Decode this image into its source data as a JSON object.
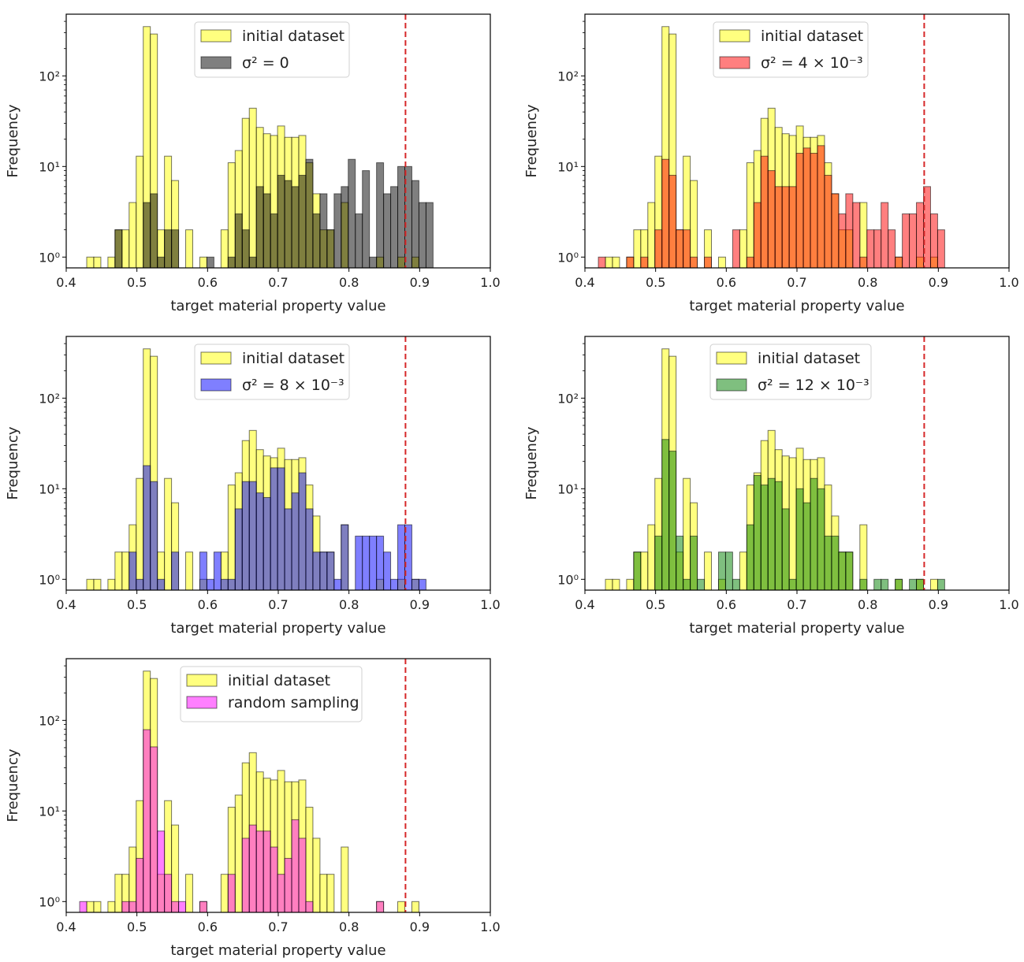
{
  "chart_data": [
    {
      "type": "bar",
      "subtype": "overlaid histogram",
      "xlabel": "target material property value",
      "ylabel": "Frequency",
      "xlim": [
        0.4,
        1.0
      ],
      "ylim": [
        0.76,
        480
      ],
      "yscale": "log",
      "xticks": [
        "0.4",
        "0.5",
        "0.6",
        "0.7",
        "0.8",
        "0.9",
        "1.0"
      ],
      "yticks": [
        1,
        10,
        100
      ],
      "ytick_labels": [
        "10⁰",
        "10¹",
        "10²"
      ],
      "bin_start": 0.419,
      "bin_width": 0.01,
      "threshold_line": {
        "x": 0.88,
        "color": "#d62728",
        "style": "dashed"
      },
      "legend_position": "top-center",
      "series": [
        {
          "name": "initial dataset",
          "color": "#ffff00",
          "counts": [
            0,
            1,
            1,
            0,
            1,
            2,
            2,
            4,
            13,
            350,
            290,
            2,
            13,
            7,
            0,
            2,
            0,
            1,
            0,
            0,
            2,
            11,
            15,
            34,
            44,
            27,
            23,
            22,
            28,
            21,
            21,
            22,
            11,
            5,
            2,
            2,
            0,
            4,
            0,
            0,
            0,
            0,
            1,
            0,
            0,
            1,
            0,
            1,
            0,
            0
          ]
        },
        {
          "name": "σ² = 0",
          "color": "#000000",
          "counts": [
            0,
            0,
            0,
            0,
            0,
            2,
            0,
            0,
            0,
            4,
            5,
            1,
            2,
            2,
            0,
            0,
            0,
            0,
            1,
            0,
            0,
            1,
            3,
            2,
            1,
            6,
            5,
            3,
            8,
            7,
            6,
            8,
            12,
            3,
            5,
            2,
            5,
            6,
            12,
            3,
            9,
            1,
            11,
            5,
            6,
            10,
            10,
            7,
            4,
            4
          ]
        }
      ]
    },
    {
      "type": "bar",
      "subtype": "overlaid histogram",
      "xlabel": "target material property value",
      "ylabel": "Frequency",
      "xlim": [
        0.4,
        1.0
      ],
      "ylim": [
        0.76,
        480
      ],
      "yscale": "log",
      "xticks": [
        "0.4",
        "0.5",
        "0.6",
        "0.7",
        "0.8",
        "0.9",
        "1.0"
      ],
      "yticks": [
        1,
        10,
        100
      ],
      "ytick_labels": [
        "10⁰",
        "10¹",
        "10²"
      ],
      "bin_start": 0.419,
      "bin_width": 0.01,
      "threshold_line": {
        "x": 0.88,
        "color": "#d62728",
        "style": "dashed"
      },
      "legend_position": "top-center",
      "series": [
        {
          "name": "initial dataset",
          "color": "#ffff00",
          "counts": [
            0,
            1,
            1,
            0,
            1,
            2,
            2,
            4,
            13,
            350,
            290,
            2,
            13,
            7,
            0,
            2,
            0,
            1,
            0,
            0,
            2,
            11,
            15,
            34,
            44,
            27,
            23,
            22,
            28,
            21,
            21,
            22,
            11,
            5,
            2,
            2,
            0,
            4,
            0,
            0,
            0,
            0,
            1,
            0,
            0,
            1,
            0,
            1,
            0,
            0
          ]
        },
        {
          "name": "σ² = 4 × 10⁻³",
          "color": "#ff0000",
          "counts": [
            1,
            0,
            0,
            0,
            1,
            0,
            1,
            0,
            2,
            12,
            8,
            2,
            2,
            1,
            0,
            1,
            0,
            0,
            0,
            2,
            0,
            1,
            4,
            13,
            9,
            6,
            6,
            6,
            14,
            16,
            14,
            17,
            8,
            5,
            3,
            5,
            4,
            1,
            2,
            2,
            4,
            2,
            1,
            3,
            3,
            4,
            6,
            3,
            2,
            0
          ]
        }
      ]
    },
    {
      "type": "bar",
      "subtype": "overlaid histogram",
      "xlabel": "target material property value",
      "ylabel": "Frequency",
      "xlim": [
        0.4,
        1.0
      ],
      "ylim": [
        0.76,
        480
      ],
      "yscale": "log",
      "xticks": [
        "0.4",
        "0.5",
        "0.6",
        "0.7",
        "0.8",
        "0.9",
        "1.0"
      ],
      "yticks": [
        1,
        10,
        100
      ],
      "ytick_labels": [
        "10⁰",
        "10¹",
        "10²"
      ],
      "bin_start": 0.419,
      "bin_width": 0.01,
      "threshold_line": {
        "x": 0.88,
        "color": "#d62728",
        "style": "dashed"
      },
      "legend_position": "top-center",
      "series": [
        {
          "name": "initial dataset",
          "color": "#ffff00",
          "counts": [
            0,
            1,
            1,
            0,
            1,
            2,
            2,
            4,
            13,
            350,
            290,
            2,
            13,
            7,
            0,
            2,
            0,
            1,
            0,
            0,
            2,
            11,
            15,
            34,
            44,
            27,
            23,
            22,
            28,
            21,
            21,
            22,
            11,
            5,
            2,
            2,
            0,
            4,
            0,
            0,
            0,
            0,
            1,
            0,
            0,
            1,
            0,
            1,
            0,
            0
          ]
        },
        {
          "name": "σ² = 8 × 10⁻³",
          "color": "#0000ff",
          "counts": [
            0,
            0,
            0,
            0,
            0,
            0,
            0,
            2,
            1,
            18,
            12,
            1,
            0,
            2,
            0,
            0,
            0,
            2,
            1,
            2,
            1,
            1,
            6,
            12,
            12,
            9,
            8,
            17,
            17,
            6,
            9,
            15,
            6,
            2,
            2,
            2,
            1,
            4,
            0,
            3,
            3,
            3,
            3,
            2,
            1,
            4,
            4,
            1,
            1,
            0
          ]
        }
      ]
    },
    {
      "type": "bar",
      "subtype": "overlaid histogram",
      "xlabel": "target material property value",
      "ylabel": "Frequency",
      "xlim": [
        0.4,
        1.0
      ],
      "ylim": [
        0.76,
        480
      ],
      "yscale": "log",
      "xticks": [
        "0.4",
        "0.5",
        "0.6",
        "0.7",
        "0.8",
        "0.9",
        "1.0"
      ],
      "yticks": [
        1,
        10,
        100
      ],
      "ytick_labels": [
        "10⁰",
        "10¹",
        "10²"
      ],
      "bin_start": 0.419,
      "bin_width": 0.01,
      "threshold_line": {
        "x": 0.88,
        "color": "#d62728",
        "style": "dashed"
      },
      "legend_position": "top-center",
      "series": [
        {
          "name": "initial dataset",
          "color": "#ffff00",
          "counts": [
            0,
            1,
            1,
            0,
            1,
            2,
            2,
            4,
            13,
            350,
            290,
            2,
            13,
            7,
            0,
            2,
            0,
            1,
            0,
            0,
            2,
            11,
            15,
            34,
            44,
            27,
            23,
            22,
            28,
            21,
            21,
            22,
            11,
            5,
            2,
            2,
            0,
            4,
            0,
            0,
            0,
            0,
            1,
            0,
            0,
            1,
            0,
            1,
            0,
            0
          ]
        },
        {
          "name": "σ² = 12 × 10⁻³",
          "color": "#008000",
          "counts": [
            0,
            0,
            0,
            0,
            0,
            2,
            0,
            0,
            3,
            35,
            26,
            3,
            1,
            3,
            1,
            0,
            0,
            2,
            2,
            1,
            0,
            4,
            14,
            11,
            13,
            12,
            6,
            1,
            10,
            7,
            13,
            10,
            3,
            3,
            2,
            2,
            0,
            1,
            0,
            1,
            1,
            0,
            1,
            0,
            1,
            1,
            0,
            0,
            1,
            0
          ]
        }
      ]
    },
    {
      "type": "bar",
      "subtype": "overlaid histogram",
      "xlabel": "target material property value",
      "ylabel": "Frequency",
      "xlim": [
        0.4,
        1.0
      ],
      "ylim": [
        0.76,
        480
      ],
      "yscale": "log",
      "xticks": [
        "0.4",
        "0.5",
        "0.6",
        "0.7",
        "0.8",
        "0.9",
        "1.0"
      ],
      "yticks": [
        1,
        10,
        100
      ],
      "ytick_labels": [
        "10⁰",
        "10¹",
        "10²"
      ],
      "bin_start": 0.419,
      "bin_width": 0.01,
      "threshold_line": {
        "x": 0.88,
        "color": "#d62728",
        "style": "dashed"
      },
      "legend_position": "top-center",
      "series": [
        {
          "name": "initial dataset",
          "color": "#ffff00",
          "counts": [
            0,
            1,
            1,
            0,
            1,
            2,
            2,
            4,
            13,
            350,
            290,
            2,
            13,
            7,
            0,
            2,
            0,
            1,
            0,
            0,
            2,
            11,
            15,
            34,
            44,
            27,
            23,
            22,
            28,
            21,
            21,
            22,
            11,
            5,
            2,
            2,
            0,
            4,
            0,
            0,
            0,
            0,
            1,
            0,
            0,
            1,
            0,
            1,
            0,
            0
          ]
        },
        {
          "name": "random sampling",
          "color": "#ff00ff",
          "counts": [
            1,
            0,
            0,
            0,
            0,
            0,
            1,
            1,
            3,
            79,
            51,
            6,
            2,
            1,
            1,
            0,
            0,
            1,
            0,
            0,
            0,
            2,
            0,
            5,
            7,
            6,
            6,
            4,
            2,
            3,
            8,
            5,
            1,
            0,
            0,
            0,
            0,
            0,
            0,
            0,
            0,
            0,
            1,
            0,
            0,
            0,
            0,
            0,
            0,
            0
          ]
        }
      ]
    }
  ]
}
